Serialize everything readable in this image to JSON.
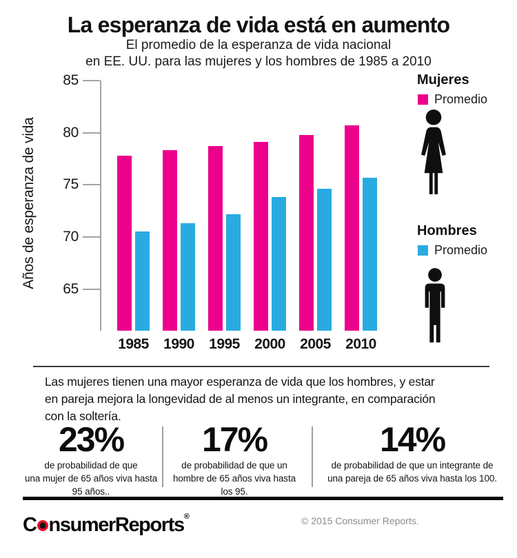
{
  "header": {
    "title": "La esperanza de vida está en aumento",
    "subtitle_line1": "El promedio de la esperanza de vida nacional",
    "subtitle_line2": "en EE. UU. para las mujeres y los hombres de 1985 a 2010"
  },
  "chart_data": {
    "type": "bar",
    "categories": [
      "1985",
      "1990",
      "1995",
      "2000",
      "2005",
      "2010"
    ],
    "series": [
      {
        "name": "Mujeres",
        "color": "#ec008c",
        "values": [
          77.8,
          78.3,
          78.7,
          79.1,
          79.8,
          80.7
        ]
      },
      {
        "name": "Hombres",
        "color": "#29abe2",
        "values": [
          70.5,
          71.3,
          72.2,
          73.8,
          74.6,
          75.7
        ]
      }
    ],
    "ylabel": "Años de esperanza de vida",
    "xlabel": "",
    "yticks": [
      65,
      70,
      75,
      80,
      85
    ],
    "ylim": [
      61,
      85
    ],
    "grid": false,
    "legend_position": "right"
  },
  "legend": {
    "mujeres": {
      "title": "Mujeres",
      "swatch_label": "Promedio",
      "color": "#ec008c",
      "icon": "woman-icon"
    },
    "hombres": {
      "title": "Hombres",
      "swatch_label": "Promedio",
      "color": "#29abe2",
      "icon": "man-icon"
    }
  },
  "summary": {
    "lines": [
      "Las mujeres tienen una mayor esperanza de vida que los hombres, y estar",
      "en pareja mejora la longevidad de al menos un integrante, en comparación",
      "con la soltería."
    ]
  },
  "stats": [
    {
      "value": "23%",
      "desc_lines": [
        "de probabilidad de que",
        "una mujer de 65 años viva hasta",
        "95 años.."
      ]
    },
    {
      "value": "17%",
      "desc_lines": [
        "de probabilidad de que un",
        "hombre de 65 años viva hasta",
        "los 95."
      ]
    },
    {
      "value": "14%",
      "desc_lines": [
        "de probabilidad de que un integrante de",
        "una pareja de 65 años viva hasta los 100."
      ]
    }
  ],
  "footer": {
    "logo_part1": "C",
    "logo_part2": "nsumerReports",
    "registered": "®",
    "copyright": "© 2015 Consumer Reports."
  }
}
